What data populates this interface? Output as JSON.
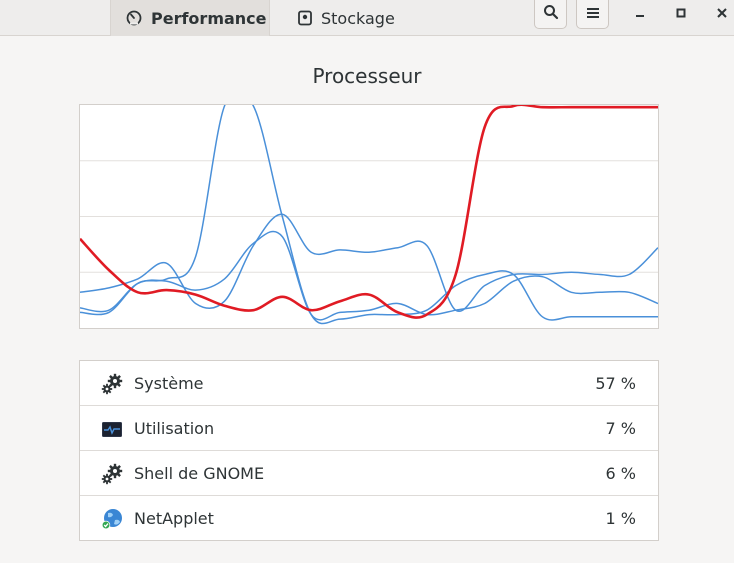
{
  "header": {
    "tabs": [
      {
        "label": "Performance",
        "icon": "speedometer-icon",
        "active": true
      },
      {
        "label": "Stockage",
        "icon": "disk-icon",
        "active": false
      }
    ],
    "buttons": [
      "search-icon",
      "menu-icon"
    ],
    "window_controls": [
      "minimize-icon",
      "maximize-icon",
      "close-icon"
    ]
  },
  "main": {
    "title": "Processeur",
    "colors": {
      "highlight_series": "#e01b24",
      "other_series": "#4a90d9"
    },
    "processes": [
      {
        "name": "Système",
        "value": "57 %",
        "icon": "gears-icon"
      },
      {
        "name": "Utilisation",
        "value": "7 %",
        "icon": "system-monitor-icon"
      },
      {
        "name": "Shell de GNOME",
        "value": "6 %",
        "icon": "gears-icon"
      },
      {
        "name": "NetApplet",
        "value": "1 %",
        "icon": "network-globe-icon"
      }
    ]
  },
  "chart_data": {
    "type": "line",
    "ylim": [
      0,
      100
    ],
    "x": [
      0,
      1,
      2,
      3,
      4,
      5,
      6,
      7,
      8,
      9,
      10,
      11,
      12,
      13,
      14,
      15,
      16,
      17,
      18,
      19,
      20
    ],
    "grid": "horizontal",
    "series": [
      {
        "color": "#e01b24",
        "values": [
          40,
          26,
          16,
          17,
          15,
          10,
          8,
          14,
          8,
          12,
          15,
          7,
          6,
          24,
          90,
          100,
          99,
          99,
          99,
          99,
          99
        ]
      },
      {
        "color": "#4a90d9",
        "values": [
          7,
          7,
          20,
          22,
          32,
          100,
          100,
          50,
          6,
          4,
          6,
          6,
          8,
          19,
          24,
          24,
          5,
          5,
          5,
          5,
          5
        ]
      },
      {
        "color": "#4a90d9",
        "values": [
          16,
          18,
          22,
          29,
          11,
          12,
          37,
          51,
          34,
          35,
          34,
          36,
          37,
          8,
          19,
          24,
          24,
          25,
          24,
          24,
          36
        ]
      },
      {
        "color": "#4a90d9",
        "values": [
          9,
          8,
          20,
          21,
          17,
          22,
          38,
          41,
          6,
          7,
          8,
          11,
          6,
          8,
          11,
          21,
          23,
          16,
          16,
          16,
          11
        ]
      }
    ]
  }
}
